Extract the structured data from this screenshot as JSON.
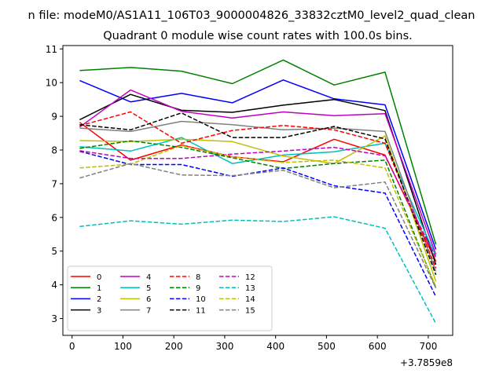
{
  "chart_data": {
    "type": "line",
    "suptitle": "n file: modeM0/AS1A11_106T03_9000004826_33832cztM0_level2_quad_clean",
    "title": "Quadrant 0 module wise count rates with 100.0s bins.",
    "xlabel": "",
    "ylabel": "",
    "x_offset_label": "+3.7859e8",
    "x": [
      15,
      115,
      215,
      315,
      415,
      515,
      615,
      715
    ],
    "xticks": [
      0,
      100,
      200,
      300,
      400,
      500,
      600,
      700
    ],
    "yticks": [
      3,
      4,
      5,
      6,
      7,
      8,
      9,
      10,
      11
    ],
    "xlim": [
      -18,
      748
    ],
    "ylim": [
      2.5,
      11.1
    ],
    "grid": false,
    "legend": {
      "placement": "lower-left",
      "columns": 4
    },
    "series": [
      {
        "name": "0",
        "color": "#ff0000",
        "dash": "solid",
        "values": [
          8.82,
          7.7,
          8.15,
          7.8,
          7.65,
          8.32,
          7.85,
          4.7
        ]
      },
      {
        "name": "1",
        "color": "#008000",
        "dash": "solid",
        "values": [
          10.36,
          10.45,
          10.34,
          9.97,
          10.67,
          9.93,
          10.31,
          5.2
        ]
      },
      {
        "name": "2",
        "color": "#0000ff",
        "dash": "solid",
        "values": [
          10.06,
          9.43,
          9.68,
          9.4,
          10.08,
          9.52,
          9.34,
          5.05
        ]
      },
      {
        "name": "3",
        "color": "#000000",
        "dash": "solid",
        "values": [
          8.9,
          9.65,
          9.18,
          9.12,
          9.33,
          9.5,
          9.17,
          4.6
        ]
      },
      {
        "name": "4",
        "color": "#c000c0",
        "dash": "solid",
        "values": [
          8.68,
          9.78,
          9.15,
          8.95,
          9.13,
          9.02,
          9.08,
          4.9
        ]
      },
      {
        "name": "5",
        "color": "#00bfbf",
        "dash": "solid",
        "values": [
          8.1,
          7.97,
          8.37,
          7.6,
          7.85,
          7.95,
          8.2,
          4.85
        ]
      },
      {
        "name": "6",
        "color": "#bfbf00",
        "dash": "solid",
        "values": [
          8.28,
          8.25,
          8.32,
          8.25,
          7.82,
          7.6,
          8.42,
          4.1
        ]
      },
      {
        "name": "7",
        "color": "#808080",
        "dash": "solid",
        "values": [
          8.65,
          8.55,
          8.85,
          8.75,
          8.6,
          8.65,
          8.55,
          4.4
        ]
      },
      {
        "name": "8",
        "color": "#ff0000",
        "dash": "dashed",
        "values": [
          8.72,
          9.13,
          8.2,
          8.58,
          8.73,
          8.6,
          8.2,
          4.5
        ]
      },
      {
        "name": "9",
        "color": "#008000",
        "dash": "dashed",
        "values": [
          8.05,
          8.27,
          8.08,
          7.77,
          7.45,
          7.6,
          7.7,
          3.9
        ]
      },
      {
        "name": "10",
        "color": "#0000ff",
        "dash": "dashed",
        "values": [
          7.96,
          7.57,
          7.57,
          7.22,
          7.47,
          6.94,
          6.72,
          3.65
        ]
      },
      {
        "name": "11",
        "color": "#000000",
        "dash": "dashed",
        "values": [
          8.75,
          8.6,
          9.1,
          8.37,
          8.37,
          8.7,
          8.33,
          4.3
        ]
      },
      {
        "name": "12",
        "color": "#c000c0",
        "dash": "dashed",
        "values": [
          7.98,
          7.75,
          7.75,
          7.88,
          7.97,
          8.08,
          7.83,
          4.8
        ]
      },
      {
        "name": "13",
        "color": "#00bfbf",
        "dash": "dashed",
        "values": [
          5.73,
          5.9,
          5.8,
          5.92,
          5.88,
          6.02,
          5.68,
          2.85
        ]
      },
      {
        "name": "14",
        "color": "#bfbf00",
        "dash": "dashed",
        "values": [
          7.47,
          7.58,
          8.13,
          7.8,
          7.63,
          7.7,
          7.47,
          3.95
        ]
      },
      {
        "name": "15",
        "color": "#808080",
        "dash": "dashed",
        "values": [
          7.17,
          7.6,
          7.26,
          7.24,
          7.4,
          6.88,
          7.05,
          3.9
        ]
      }
    ]
  }
}
